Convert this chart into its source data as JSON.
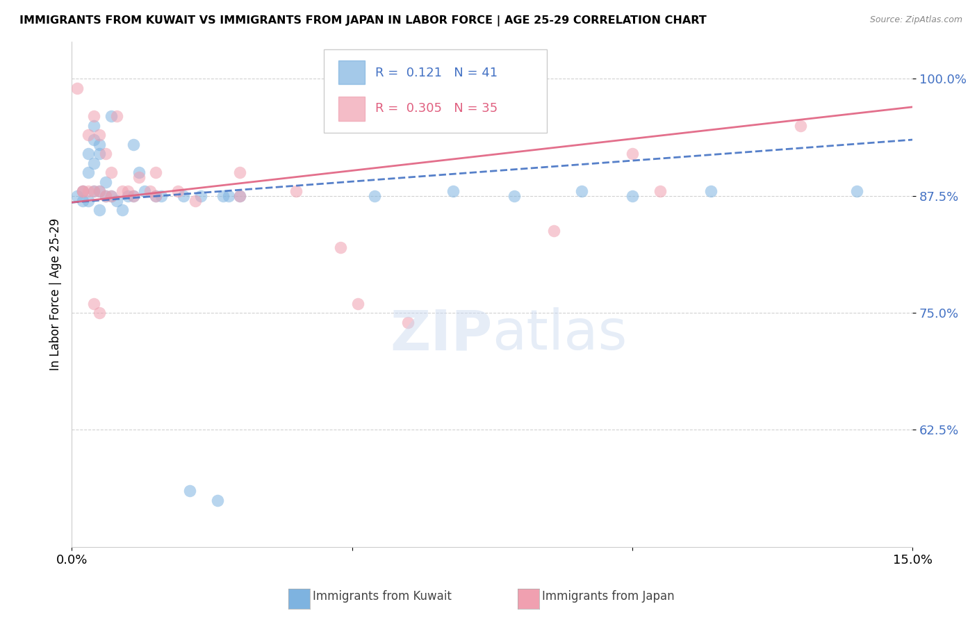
{
  "title": "IMMIGRANTS FROM KUWAIT VS IMMIGRANTS FROM JAPAN IN LABOR FORCE | AGE 25-29 CORRELATION CHART",
  "source": "Source: ZipAtlas.com",
  "ylabel": "In Labor Force | Age 25-29",
  "xlim": [
    0.0,
    0.15
  ],
  "ylim": [
    0.5,
    1.04
  ],
  "yticks": [
    0.625,
    0.75,
    0.875,
    1.0
  ],
  "ytick_labels": [
    "62.5%",
    "75.0%",
    "87.5%",
    "100.0%"
  ],
  "xticks": [
    0.0,
    0.05,
    0.1,
    0.15
  ],
  "xtick_labels": [
    "0.0%",
    "",
    "",
    "15.0%"
  ],
  "kuwait_R": 0.121,
  "kuwait_N": 41,
  "japan_R": 0.305,
  "japan_N": 35,
  "kuwait_color": "#7eb3e0",
  "japan_color": "#f0a0b0",
  "kuwait_line_color": "#4472c4",
  "japan_line_color": "#e06080",
  "background_color": "#ffffff",
  "kuwait_scatter_x": [
    0.001,
    0.002,
    0.002,
    0.003,
    0.003,
    0.003,
    0.004,
    0.004,
    0.004,
    0.004,
    0.005,
    0.005,
    0.005,
    0.005,
    0.006,
    0.006,
    0.007,
    0.007,
    0.008,
    0.009,
    0.01,
    0.011,
    0.011,
    0.012,
    0.013,
    0.015,
    0.016,
    0.02,
    0.023,
    0.027,
    0.028,
    0.03,
    0.054,
    0.068,
    0.079,
    0.091,
    0.1,
    0.114,
    0.14,
    0.021,
    0.026
  ],
  "kuwait_scatter_y": [
    0.875,
    0.88,
    0.87,
    0.92,
    0.9,
    0.87,
    0.95,
    0.935,
    0.91,
    0.88,
    0.93,
    0.92,
    0.88,
    0.86,
    0.89,
    0.875,
    0.96,
    0.875,
    0.87,
    0.86,
    0.875,
    0.93,
    0.875,
    0.9,
    0.88,
    0.875,
    0.875,
    0.875,
    0.875,
    0.875,
    0.875,
    0.875,
    0.875,
    0.88,
    0.875,
    0.88,
    0.875,
    0.88,
    0.88,
    0.56,
    0.55
  ],
  "japan_scatter_x": [
    0.001,
    0.002,
    0.003,
    0.003,
    0.004,
    0.004,
    0.005,
    0.005,
    0.006,
    0.006,
    0.007,
    0.007,
    0.008,
    0.009,
    0.01,
    0.011,
    0.012,
    0.014,
    0.015,
    0.015,
    0.019,
    0.022,
    0.03,
    0.03,
    0.04,
    0.048,
    0.051,
    0.06,
    0.086,
    0.1,
    0.105,
    0.13,
    0.002,
    0.004,
    0.005
  ],
  "japan_scatter_y": [
    0.99,
    0.88,
    0.94,
    0.88,
    0.96,
    0.88,
    0.94,
    0.88,
    0.92,
    0.875,
    0.9,
    0.875,
    0.96,
    0.88,
    0.88,
    0.875,
    0.895,
    0.88,
    0.9,
    0.875,
    0.88,
    0.87,
    0.9,
    0.875,
    0.88,
    0.82,
    0.76,
    0.74,
    0.838,
    0.92,
    0.88,
    0.95,
    0.88,
    0.76,
    0.75
  ]
}
